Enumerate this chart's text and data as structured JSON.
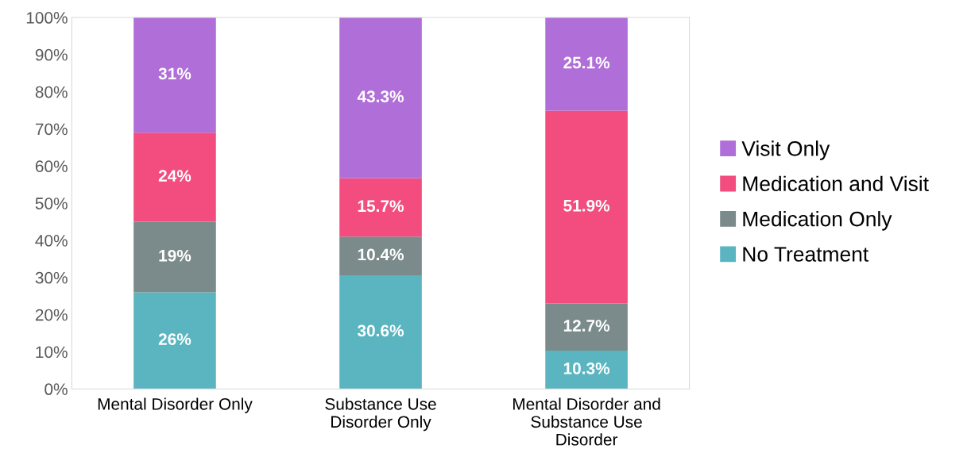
{
  "chart_data": {
    "type": "bar",
    "stacked": true,
    "categories": [
      "Mental Disorder Only",
      "Substance Use Disorder Only",
      "Mental Disorder and Substance Use Disorder"
    ],
    "series": [
      {
        "name": "No Treatment",
        "color": "#5ab5c0",
        "values": [
          26,
          30.6,
          10.3
        ],
        "value_labels": [
          "26%",
          "30.6%",
          "10.3%"
        ]
      },
      {
        "name": "Medication Only",
        "color": "#7b8b8b",
        "values": [
          19,
          10.4,
          12.7
        ],
        "value_labels": [
          "19%",
          "10.4%",
          "12.7%"
        ]
      },
      {
        "name": "Medication and Visit",
        "color": "#f24d7e",
        "values": [
          24,
          15.7,
          51.9
        ],
        "value_labels": [
          "24%",
          "15.7%",
          "51.9%"
        ]
      },
      {
        "name": "Visit Only",
        "color": "#b06fd8",
        "values": [
          31,
          43.3,
          25.1
        ],
        "value_labels": [
          "31%",
          "43.3%",
          "25.1%"
        ]
      }
    ],
    "ylim": [
      0,
      100
    ],
    "yticks": [
      {
        "value": 0,
        "label": "0%"
      },
      {
        "value": 10,
        "label": "10%"
      },
      {
        "value": 20,
        "label": "20%"
      },
      {
        "value": 30,
        "label": "30%"
      },
      {
        "value": 40,
        "label": "40%"
      },
      {
        "value": 50,
        "label": "50%"
      },
      {
        "value": 60,
        "label": "60%"
      },
      {
        "value": 70,
        "label": "70%"
      },
      {
        "value": 80,
        "label": "80%"
      },
      {
        "value": 90,
        "label": "90%"
      },
      {
        "value": 100,
        "label": "100%"
      }
    ],
    "legend": "right",
    "grid": false
  }
}
